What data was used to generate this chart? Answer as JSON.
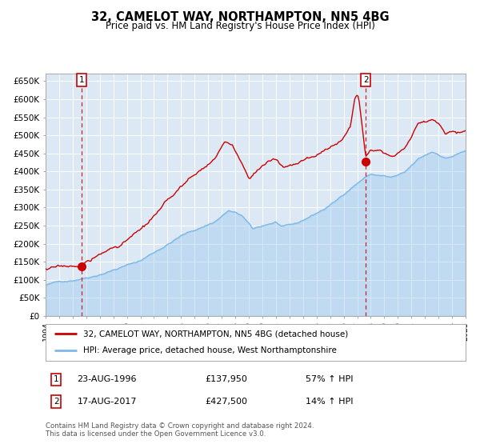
{
  "title": "32, CAMELOT WAY, NORTHAMPTON, NN5 4BG",
  "subtitle": "Price paid vs. HM Land Registry's House Price Index (HPI)",
  "legend_line1": "32, CAMELOT WAY, NORTHAMPTON, NN5 4BG (detached house)",
  "legend_line2": "HPI: Average price, detached house, West Northamptonshire",
  "sale1_date_label": "23-AUG-1996",
  "sale1_price": 137950,
  "sale1_pct": "57% ↑ HPI",
  "sale2_date_label": "17-AUG-2017",
  "sale2_price": 427500,
  "sale2_pct": "14% ↑ HPI",
  "footnote": "Contains HM Land Registry data © Crown copyright and database right 2024.\nThis data is licensed under the Open Government Licence v3.0.",
  "bg_color": "#dce9f5",
  "hpi_color": "#7db8e8",
  "price_color": "#cc0000",
  "marker_color": "#cc0000",
  "vline_color": "#cc0000",
  "grid_color": "#ffffff",
  "ylim": [
    0,
    670000
  ],
  "ytick_vals": [
    0,
    50000,
    100000,
    150000,
    200000,
    250000,
    300000,
    350000,
    400000,
    450000,
    500000,
    550000,
    600000,
    650000
  ],
  "ytick_labels": [
    "£0",
    "£50K",
    "£100K",
    "£150K",
    "£200K",
    "£250K",
    "£300K",
    "£350K",
    "£400K",
    "£450K",
    "£500K",
    "£550K",
    "£600K",
    "£650K"
  ],
  "sale1_x": 1996.648,
  "sale2_x": 2017.63,
  "hpi_base_1994": 85000,
  "hpi_keypoints": [
    [
      1994.0,
      85000
    ],
    [
      1995.0,
      93000
    ],
    [
      1996.0,
      100000
    ],
    [
      1997.5,
      115000
    ],
    [
      1999.0,
      135000
    ],
    [
      2001.0,
      160000
    ],
    [
      2002.5,
      195000
    ],
    [
      2004.0,
      230000
    ],
    [
      2005.0,
      245000
    ],
    [
      2006.5,
      270000
    ],
    [
      2007.5,
      300000
    ],
    [
      2008.5,
      285000
    ],
    [
      2009.3,
      245000
    ],
    [
      2010.5,
      260000
    ],
    [
      2011.0,
      265000
    ],
    [
      2011.5,
      250000
    ],
    [
      2012.5,
      255000
    ],
    [
      2013.5,
      275000
    ],
    [
      2014.5,
      295000
    ],
    [
      2015.5,
      320000
    ],
    [
      2016.5,
      355000
    ],
    [
      2017.5,
      385000
    ],
    [
      2018.0,
      395000
    ],
    [
      2019.0,
      390000
    ],
    [
      2019.5,
      385000
    ],
    [
      2020.5,
      395000
    ],
    [
      2021.5,
      430000
    ],
    [
      2022.5,
      450000
    ],
    [
      2023.0,
      445000
    ],
    [
      2023.5,
      435000
    ],
    [
      2024.0,
      440000
    ],
    [
      2025.0,
      455000
    ]
  ],
  "prop_keypoints": [
    [
      1994.0,
      130000
    ],
    [
      1995.0,
      132000
    ],
    [
      1996.0,
      135000
    ],
    [
      1996.648,
      137950
    ],
    [
      1997.5,
      155000
    ],
    [
      1998.5,
      175000
    ],
    [
      1999.5,
      195000
    ],
    [
      2001.0,
      230000
    ],
    [
      2002.5,
      280000
    ],
    [
      2004.0,
      340000
    ],
    [
      2005.0,
      370000
    ],
    [
      2006.5,
      420000
    ],
    [
      2007.2,
      460000
    ],
    [
      2007.8,
      450000
    ],
    [
      2008.0,
      435000
    ],
    [
      2009.0,
      360000
    ],
    [
      2009.5,
      380000
    ],
    [
      2010.0,
      400000
    ],
    [
      2010.5,
      410000
    ],
    [
      2011.0,
      415000
    ],
    [
      2011.5,
      390000
    ],
    [
      2012.5,
      400000
    ],
    [
      2013.5,
      415000
    ],
    [
      2014.0,
      420000
    ],
    [
      2014.5,
      430000
    ],
    [
      2015.0,
      440000
    ],
    [
      2015.5,
      455000
    ],
    [
      2016.0,
      475000
    ],
    [
      2016.5,
      505000
    ],
    [
      2016.8,
      575000
    ],
    [
      2017.0,
      590000
    ],
    [
      2017.1,
      585000
    ],
    [
      2017.63,
      427500
    ],
    [
      2018.0,
      450000
    ],
    [
      2018.5,
      455000
    ],
    [
      2019.0,
      450000
    ],
    [
      2019.5,
      440000
    ],
    [
      2020.0,
      445000
    ],
    [
      2020.5,
      460000
    ],
    [
      2021.5,
      530000
    ],
    [
      2022.5,
      540000
    ],
    [
      2023.0,
      530000
    ],
    [
      2023.5,
      505000
    ],
    [
      2024.0,
      515000
    ],
    [
      2024.5,
      510000
    ],
    [
      2025.0,
      520000
    ]
  ]
}
